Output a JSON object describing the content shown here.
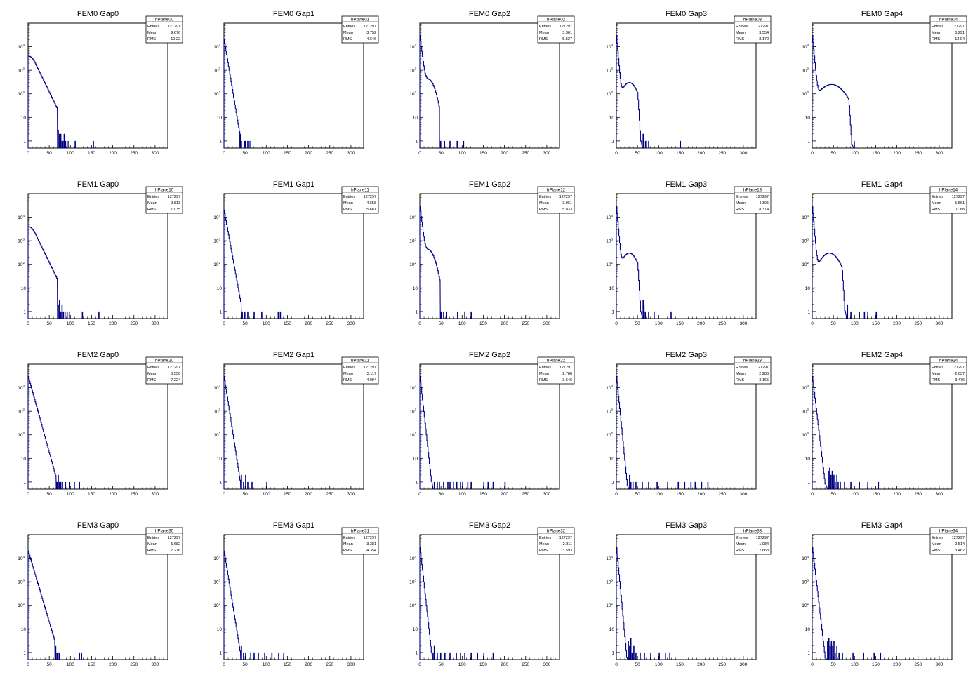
{
  "canvas": {
    "cols": 5,
    "rows": 4
  },
  "colors": {
    "histogram": "#000080",
    "axis": "#000000",
    "background": "#ffffff",
    "stats_box": "#000000"
  },
  "axis": {
    "x": {
      "min": 0,
      "max": 330,
      "ticks": [
        0,
        50,
        100,
        150,
        200,
        250,
        300
      ]
    },
    "y": {
      "scale": "log",
      "min": 0.5,
      "max": 100000,
      "ticks": [
        {
          "value": 1,
          "label": "1"
        },
        {
          "value": 10,
          "label": "10"
        },
        {
          "value": 100,
          "label": "10",
          "sup": "2"
        },
        {
          "value": 1000,
          "label": "10",
          "sup": "3"
        },
        {
          "value": 10000,
          "label": "10",
          "sup": "4"
        }
      ]
    }
  },
  "stat_labels": {
    "entries": "Entries",
    "mean": "Mean",
    "rms": "RMS"
  },
  "chart_data": [
    {
      "type": "bar",
      "title": "FEM0 Gap0",
      "name": "hPlane00",
      "entries": "127297",
      "mean": "9.676",
      "rms": "10.22",
      "shape": {
        "kind": "wide",
        "peak": 4000,
        "cut": 20,
        "k": 0.085,
        "end": 68,
        "hump_amp": 0,
        "hump_center": 0,
        "hump_width": 0
      },
      "outliers": [
        [
          70,
          3
        ],
        [
          73,
          2
        ],
        [
          76,
          2
        ],
        [
          79,
          1
        ],
        [
          81,
          1
        ],
        [
          84,
          2
        ],
        [
          87,
          1
        ],
        [
          91,
          1
        ],
        [
          95,
          1
        ],
        [
          110,
          1
        ],
        [
          153,
          1
        ]
      ]
    },
    {
      "type": "bar",
      "title": "FEM0 Gap1",
      "name": "hPlane01",
      "entries": "127297",
      "mean": "3.752",
      "rms": "4.646",
      "shape": {
        "kind": "narrow",
        "peak": 20000,
        "cut": 0,
        "k": 0.25,
        "end": 36,
        "hump_amp": 0,
        "hump_center": 0,
        "hump_width": 0
      },
      "outliers": [
        [
          38,
          2
        ],
        [
          40,
          1
        ],
        [
          48,
          1
        ],
        [
          50,
          1
        ],
        [
          55,
          1
        ],
        [
          58,
          1
        ],
        [
          62,
          1
        ]
      ]
    },
    {
      "type": "bar",
      "title": "FEM0 Gap2",
      "name": "hPlane02",
      "entries": "127297",
      "mean": "3.361",
      "rms": "5.527",
      "shape": {
        "kind": "shoulder",
        "peak": 30000,
        "cut": 0,
        "k": 0.35,
        "end": 45,
        "hump_amp": 400,
        "hump_center": 20,
        "hump_width": 11
      },
      "outliers": [
        [
          48,
          1
        ],
        [
          57,
          1
        ],
        [
          70,
          1
        ],
        [
          87,
          1
        ],
        [
          102,
          1
        ]
      ]
    },
    {
      "type": "bar",
      "title": "FEM0 Gap3",
      "name": "hPlane03",
      "entries": "127297",
      "mean": "3.554",
      "rms": "8.172",
      "shape": {
        "kind": "hump",
        "peak": 30000,
        "cut": 0,
        "k": 0.5,
        "end": 60,
        "hump_amp": 300,
        "hump_center": 30,
        "hump_width": 14
      },
      "outliers": [
        [
          62,
          2
        ],
        [
          64,
          1
        ],
        [
          68,
          1
        ],
        [
          75,
          1
        ],
        [
          150,
          1
        ]
      ]
    },
    {
      "type": "bar",
      "title": "FEM0 Gap4",
      "name": "hPlane04",
      "entries": "127297",
      "mean": "5.291",
      "rms": "12.94",
      "shape": {
        "kind": "hump",
        "peak": 30000,
        "cut": 0,
        "k": 0.45,
        "end": 96,
        "hump_amp": 250,
        "hump_center": 45,
        "hump_width": 24
      },
      "outliers": [
        [
          98,
          1
        ]
      ]
    },
    {
      "type": "bar",
      "title": "FEM1 Gap0",
      "name": "hPlane10",
      "entries": "127297",
      "mean": "9.813",
      "rms": "10.35",
      "shape": {
        "kind": "wide",
        "peak": 4000,
        "cut": 20,
        "k": 0.085,
        "end": 68,
        "hump_amp": 0,
        "hump_center": 0,
        "hump_width": 0
      },
      "outliers": [
        [
          70,
          2
        ],
        [
          73,
          3
        ],
        [
          76,
          1
        ],
        [
          79,
          2
        ],
        [
          82,
          1
        ],
        [
          86,
          1
        ],
        [
          91,
          1
        ],
        [
          96,
          1
        ],
        [
          127,
          1
        ],
        [
          166,
          1
        ]
      ]
    },
    {
      "type": "bar",
      "title": "FEM1 Gap1",
      "name": "hPlane11",
      "entries": "127297",
      "mean": "4.658",
      "rms": "5.681",
      "shape": {
        "kind": "narrow",
        "peak": 20000,
        "cut": 0,
        "k": 0.23,
        "end": 40,
        "hump_amp": 0,
        "hump_center": 0,
        "hump_width": 0
      },
      "outliers": [
        [
          42,
          1
        ],
        [
          48,
          1
        ],
        [
          55,
          1
        ],
        [
          70,
          1
        ],
        [
          88,
          1
        ],
        [
          127,
          1
        ],
        [
          132,
          1
        ]
      ]
    },
    {
      "type": "bar",
      "title": "FEM1 Gap2",
      "name": "hPlane12",
      "entries": "127297",
      "mean": "3.961",
      "rms": "5.833",
      "shape": {
        "kind": "shoulder",
        "peak": 30000,
        "cut": 0,
        "k": 0.35,
        "end": 47,
        "hump_amp": 400,
        "hump_center": 20,
        "hump_width": 11
      },
      "outliers": [
        [
          49,
          1
        ],
        [
          55,
          1
        ],
        [
          62,
          1
        ],
        [
          88,
          1
        ],
        [
          105,
          1
        ],
        [
          120,
          1
        ]
      ]
    },
    {
      "type": "bar",
      "title": "FEM1 Gap3",
      "name": "hPlane13",
      "entries": "127297",
      "mean": "4.305",
      "rms": "8.374",
      "shape": {
        "kind": "hump",
        "peak": 30000,
        "cut": 0,
        "k": 0.5,
        "end": 60,
        "hump_amp": 300,
        "hump_center": 30,
        "hump_width": 14
      },
      "outliers": [
        [
          62,
          3
        ],
        [
          64,
          2
        ],
        [
          67,
          1
        ],
        [
          75,
          1
        ],
        [
          88,
          1
        ],
        [
          128,
          1
        ]
      ]
    },
    {
      "type": "bar",
      "title": "FEM1 Gap4",
      "name": "hPlane14",
      "entries": "127297",
      "mean": "5.561",
      "rms": "11.68",
      "shape": {
        "kind": "hump",
        "peak": 30000,
        "cut": 0,
        "k": 0.5,
        "end": 80,
        "hump_amp": 300,
        "hump_center": 40,
        "hump_width": 18
      },
      "outliers": [
        [
          82,
          2
        ],
        [
          90,
          1
        ],
        [
          110,
          1
        ],
        [
          122,
          1
        ],
        [
          130,
          1
        ],
        [
          150,
          1
        ]
      ]
    },
    {
      "type": "bar",
      "title": "FEM2 Gap0",
      "name": "hPlane20",
      "entries": "127297",
      "mean": "5.556",
      "rms": "7.224",
      "shape": {
        "kind": "narrow",
        "peak": 30000,
        "cut": 0,
        "k": 0.15,
        "end": 65,
        "hump_amp": 0,
        "hump_center": 0,
        "hump_width": 0
      },
      "outliers": [
        [
          67,
          1
        ],
        [
          70,
          2
        ],
        [
          73,
          1
        ],
        [
          76,
          1
        ],
        [
          80,
          1
        ],
        [
          87,
          1
        ],
        [
          97,
          1
        ],
        [
          108,
          1
        ],
        [
          120,
          1
        ]
      ]
    },
    {
      "type": "bar",
      "title": "FEM2 Gap1",
      "name": "hPlane21",
      "entries": "127297",
      "mean": "3.117",
      "rms": "4.094",
      "shape": {
        "kind": "narrow",
        "peak": 30000,
        "cut": 0,
        "k": 0.27,
        "end": 38,
        "hump_amp": 0,
        "hump_center": 0,
        "hump_width": 0
      },
      "outliers": [
        [
          40,
          2
        ],
        [
          45,
          1
        ],
        [
          50,
          2
        ],
        [
          55,
          1
        ],
        [
          65,
          1
        ],
        [
          100,
          1
        ]
      ]
    },
    {
      "type": "bar",
      "title": "FEM2 Gap2",
      "name": "hPlane22",
      "entries": "127297",
      "mean": "2.786",
      "rms": "3.646",
      "shape": {
        "kind": "narrow",
        "peak": 30000,
        "cut": 0,
        "k": 0.38,
        "end": 30,
        "hump_amp": 0,
        "hump_center": 0,
        "hump_width": 0
      },
      "outliers": [
        [
          33,
          1
        ],
        [
          40,
          1
        ],
        [
          45,
          1
        ],
        [
          55,
          1
        ],
        [
          65,
          1
        ],
        [
          70,
          1
        ],
        [
          78,
          1
        ],
        [
          86,
          1
        ],
        [
          95,
          1
        ],
        [
          100,
          1
        ],
        [
          112,
          1
        ],
        [
          120,
          1
        ],
        [
          150,
          1
        ],
        [
          160,
          1
        ],
        [
          172,
          1
        ],
        [
          200,
          1
        ]
      ]
    },
    {
      "type": "bar",
      "title": "FEM2 Gap3",
      "name": "hPlane23",
      "entries": "127297",
      "mean": "2.286",
      "rms": "3.165",
      "shape": {
        "kind": "narrow",
        "peak": 30000,
        "cut": 0,
        "k": 0.42,
        "end": 28,
        "hump_amp": 0,
        "hump_center": 0,
        "hump_width": 0
      },
      "outliers": [
        [
          30,
          2
        ],
        [
          33,
          1
        ],
        [
          38,
          1
        ],
        [
          45,
          1
        ],
        [
          60,
          1
        ],
        [
          75,
          1
        ],
        [
          95,
          1
        ],
        [
          120,
          1
        ],
        [
          145,
          1
        ],
        [
          160,
          1
        ],
        [
          175,
          1
        ],
        [
          185,
          1
        ],
        [
          200,
          1
        ],
        [
          215,
          1
        ]
      ]
    },
    {
      "type": "bar",
      "title": "FEM2 Gap4",
      "name": "hPlane24",
      "entries": "127297",
      "mean": "2.637",
      "rms": "3.476",
      "shape": {
        "kind": "narrow",
        "peak": 30000,
        "cut": 0,
        "k": 0.35,
        "end": 35,
        "hump_amp": 0,
        "hump_center": 0,
        "hump_width": 0
      },
      "outliers": [
        [
          37,
          3
        ],
        [
          40,
          4
        ],
        [
          43,
          2
        ],
        [
          46,
          3
        ],
        [
          50,
          2
        ],
        [
          53,
          1
        ],
        [
          57,
          2
        ],
        [
          60,
          1
        ],
        [
          65,
          1
        ],
        [
          75,
          1
        ],
        [
          90,
          1
        ],
        [
          110,
          1
        ],
        [
          130,
          1
        ],
        [
          155,
          1
        ]
      ]
    },
    {
      "type": "bar",
      "title": "FEM3 Gap0",
      "name": "hPlane30",
      "entries": "127297",
      "mean": "5.682",
      "rms": "7.276",
      "shape": {
        "kind": "narrow",
        "peak": 20000,
        "cut": 0,
        "k": 0.14,
        "end": 62,
        "hump_amp": 0,
        "hump_center": 0,
        "hump_width": 0
      },
      "outliers": [
        [
          64,
          2
        ],
        [
          67,
          1
        ],
        [
          72,
          1
        ],
        [
          120,
          1
        ],
        [
          125,
          1
        ]
      ]
    },
    {
      "type": "bar",
      "title": "FEM3 Gap1",
      "name": "hPlane31",
      "entries": "127297",
      "mean": "3.381",
      "rms": "4.354",
      "shape": {
        "kind": "narrow",
        "peak": 20000,
        "cut": 0,
        "k": 0.26,
        "end": 38,
        "hump_amp": 0,
        "hump_center": 0,
        "hump_width": 0
      },
      "outliers": [
        [
          40,
          2
        ],
        [
          45,
          1
        ],
        [
          50,
          1
        ],
        [
          62,
          1
        ],
        [
          70,
          1
        ],
        [
          80,
          1
        ],
        [
          95,
          1
        ],
        [
          112,
          1
        ],
        [
          128,
          1
        ],
        [
          140,
          1
        ]
      ]
    },
    {
      "type": "bar",
      "title": "FEM3 Gap2",
      "name": "hPlane32",
      "entries": "127297",
      "mean": "2.811",
      "rms": "3.593",
      "shape": {
        "kind": "narrow",
        "peak": 30000,
        "cut": 0,
        "k": 0.38,
        "end": 28,
        "hump_amp": 0,
        "hump_center": 0,
        "hump_width": 0
      },
      "outliers": [
        [
          30,
          1
        ],
        [
          33,
          2
        ],
        [
          40,
          1
        ],
        [
          48,
          1
        ],
        [
          58,
          1
        ],
        [
          70,
          1
        ],
        [
          85,
          1
        ],
        [
          95,
          1
        ],
        [
          105,
          1
        ],
        [
          120,
          1
        ],
        [
          135,
          1
        ],
        [
          150,
          1
        ],
        [
          172,
          1
        ]
      ]
    },
    {
      "type": "bar",
      "title": "FEM3 Gap3",
      "name": "hPlane33",
      "entries": "127297",
      "mean": "1.984",
      "rms": "2.663",
      "shape": {
        "kind": "narrow",
        "peak": 30000,
        "cut": 0,
        "k": 0.45,
        "end": 25,
        "hump_amp": 0,
        "hump_center": 0,
        "hump_width": 0
      },
      "outliers": [
        [
          27,
          3
        ],
        [
          30,
          2
        ],
        [
          33,
          4
        ],
        [
          36,
          1
        ],
        [
          40,
          2
        ],
        [
          45,
          1
        ],
        [
          55,
          1
        ],
        [
          65,
          1
        ],
        [
          80,
          1
        ],
        [
          100,
          1
        ],
        [
          115,
          1
        ],
        [
          125,
          1
        ]
      ]
    },
    {
      "type": "bar",
      "title": "FEM3 Gap4",
      "name": "hPlane34",
      "entries": "127297",
      "mean": "2.514",
      "rms": "3.462",
      "shape": {
        "kind": "narrow",
        "peak": 30000,
        "cut": 0,
        "k": 0.36,
        "end": 33,
        "hump_amp": 0,
        "hump_center": 0,
        "hump_width": 0
      },
      "outliers": [
        [
          35,
          3
        ],
        [
          38,
          4
        ],
        [
          41,
          2
        ],
        [
          44,
          3
        ],
        [
          47,
          2
        ],
        [
          50,
          3
        ],
        [
          53,
          1
        ],
        [
          57,
          2
        ],
        [
          62,
          1
        ],
        [
          70,
          1
        ],
        [
          95,
          1
        ],
        [
          120,
          1
        ],
        [
          145,
          1
        ],
        [
          160,
          1
        ]
      ]
    }
  ]
}
